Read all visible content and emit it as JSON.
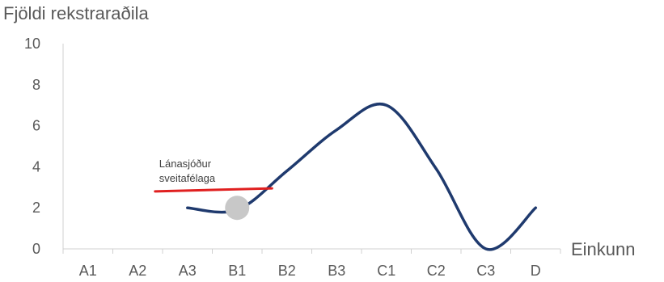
{
  "chart_data": {
    "type": "line",
    "ylabel": "Fjöldi rekstraraðila",
    "xlabel": "Einkunn",
    "categories": [
      "A1",
      "A2",
      "A3",
      "B1",
      "B2",
      "B3",
      "C1",
      "C2",
      "C3",
      "D"
    ],
    "ylim": [
      0,
      10
    ],
    "yticks": [
      "0",
      "2",
      "4",
      "6",
      "8",
      "10"
    ],
    "grid": false,
    "legend": "none",
    "series": [
      {
        "values": [
          null,
          null,
          2,
          1.9,
          3.8,
          5.8,
          7,
          3.9,
          0,
          2
        ],
        "color": "#1f3a6e"
      }
    ],
    "reference_line": {
      "label_line1": "Lánasjóður",
      "label_line2": "sveitafélaga",
      "x_start": 1.85,
      "x_end": 4.2,
      "y_start": 2.8,
      "y_end": 2.95,
      "color": "#e02020"
    },
    "marker": {
      "category": "B1",
      "value": 2,
      "color": "#c8c8c8"
    }
  }
}
